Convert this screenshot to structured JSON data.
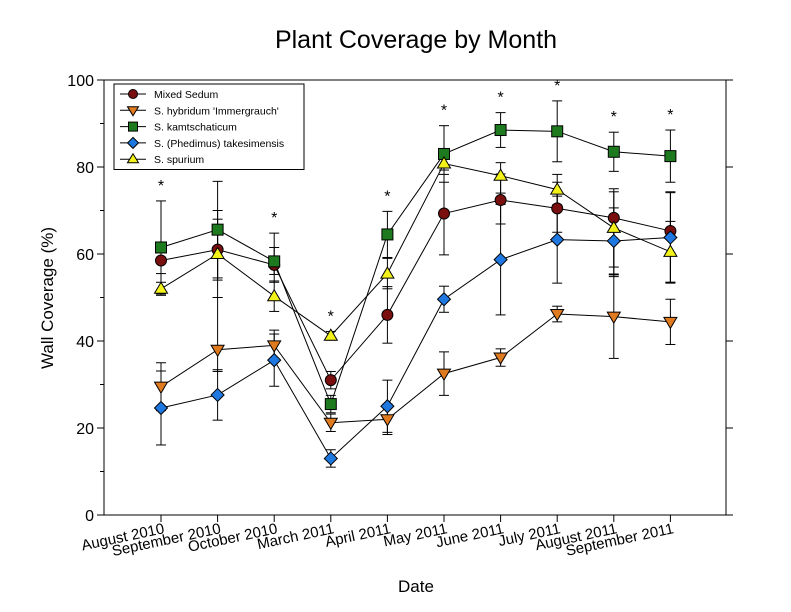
{
  "chart_data": {
    "type": "line",
    "title": "Plant Coverage by Month",
    "xlabel": "Date",
    "ylabel": "Wall Coverage (%)",
    "ylim": [
      0,
      100
    ],
    "yticks": [
      0,
      20,
      40,
      60,
      80,
      100
    ],
    "grid": false,
    "legend": "top-left",
    "categories": [
      "August 2010",
      "September 2010",
      "October 2010",
      "March 2011",
      "April 2011",
      "May 2011",
      "June 2011",
      "July 2011",
      "August 2011",
      "September 2011"
    ],
    "significance_marker": "*",
    "significant_indices": [
      0,
      2,
      3,
      4,
      5,
      6,
      7,
      8,
      9
    ],
    "series": [
      {
        "name": "Mixed Sedum",
        "marker": "circle",
        "color": "#7a0f0f",
        "values": [
          58.5,
          61.0,
          57.5,
          31.0,
          46.0,
          69.3,
          72.4,
          70.5,
          68.3,
          65.3
        ],
        "err_low": [
          3.0,
          7.0,
          4.0,
          2.0,
          6.5,
          9.5,
          5.5,
          5.5,
          13.5,
          12.0
        ],
        "err_high": [
          4.0,
          7.0,
          4.0,
          2.0,
          6.5,
          10.0,
          6.0,
          6.0,
          6.0,
          9.0
        ]
      },
      {
        "name": "S. hybridum 'Immergrauch'",
        "marker": "triangle-down",
        "color": "#e07a1f",
        "values": [
          29.5,
          38.0,
          39.0,
          21.2,
          22.0,
          32.5,
          36.2,
          46.2,
          45.6,
          44.4
        ],
        "err_low": [
          5.5,
          5.0,
          3.5,
          2.0,
          3.5,
          5.0,
          2.0,
          1.8,
          9.6,
          5.2
        ],
        "err_high": [
          5.5,
          12.0,
          3.5,
          2.0,
          3.5,
          5.0,
          2.0,
          1.8,
          9.6,
          5.2
        ]
      },
      {
        "name": "S. kamtschaticum",
        "marker": "square",
        "color": "#1e7a1e",
        "values": [
          61.5,
          65.6,
          58.3,
          25.5,
          64.5,
          83.0,
          88.5,
          88.2,
          83.5,
          82.5
        ],
        "err_low": [
          10.7,
          11.1,
          3.0,
          2.0,
          5.3,
          6.5,
          4.0,
          7.0,
          4.5,
          6.0
        ],
        "err_high": [
          10.7,
          11.1,
          6.5,
          2.0,
          5.3,
          6.5,
          4.0,
          7.0,
          4.5,
          6.0
        ]
      },
      {
        "name": "S. (Phedimus) takesimensis",
        "marker": "diamond",
        "color": "#1e78e0",
        "values": [
          24.6,
          27.6,
          35.6,
          13.0,
          25.0,
          49.6,
          58.7,
          63.3,
          63.0,
          63.8
        ],
        "err_low": [
          8.5,
          5.8,
          6.0,
          2.0,
          6.0,
          3.0,
          12.7,
          10.0,
          7.6,
          10.3
        ],
        "err_high": [
          8.5,
          5.8,
          6.0,
          2.0,
          6.0,
          3.0,
          12.7,
          10.0,
          7.6,
          10.3
        ]
      },
      {
        "name": "S. spurium",
        "marker": "triangle-up",
        "color": "#f2f21a",
        "values": [
          52.0,
          60.0,
          50.3,
          41.2,
          55.5,
          80.8,
          78.0,
          74.8,
          66.0,
          60.5
        ],
        "err_low": [
          1.5,
          10.0,
          3.5,
          1.0,
          3.5,
          2.5,
          4.0,
          3.5,
          9.0,
          7.0
        ],
        "err_high": [
          1.5,
          10.0,
          3.5,
          1.0,
          3.5,
          2.5,
          3.0,
          3.5,
          9.0,
          7.0
        ]
      }
    ]
  }
}
